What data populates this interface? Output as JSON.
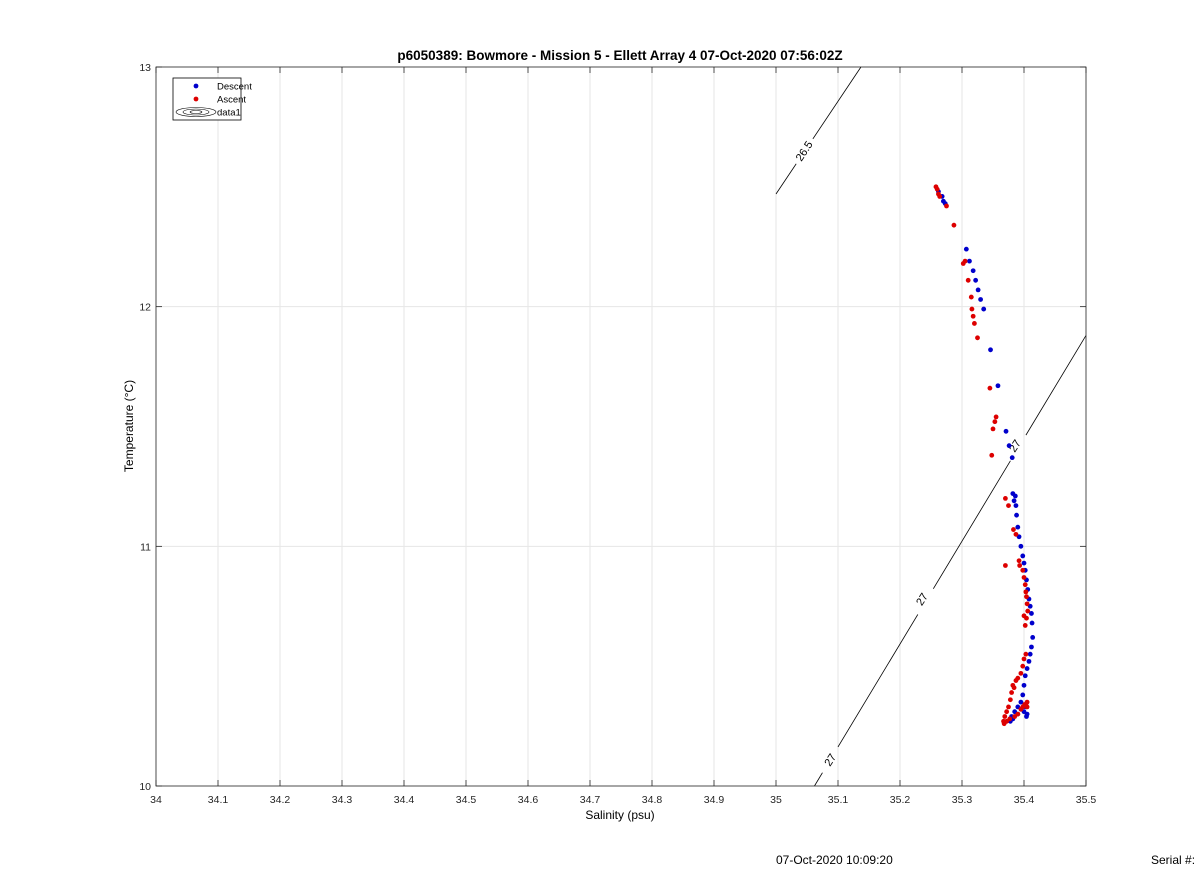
{
  "chart_data": {
    "type": "scatter",
    "title": "p6050389: Bowmore - Mission 5 - Ellett Array 4 07-Oct-2020 07:56:02Z",
    "xlabel": "Salinity (psu)",
    "ylabel": "Temperature (°C)",
    "xlim": [
      34,
      35.5
    ],
    "ylim": [
      10,
      13
    ],
    "xticks": [
      "34",
      "34.1",
      "34.2",
      "34.3",
      "34.4",
      "34.5",
      "34.6",
      "34.7",
      "34.8",
      "34.9",
      "35",
      "35.1",
      "35.2",
      "35.3",
      "35.4",
      "35.5"
    ],
    "yticks": [
      "10",
      "11",
      "12",
      "13"
    ],
    "grid": true,
    "legend": {
      "placement": "top-left",
      "entries": [
        "Descent",
        "Ascent",
        "data1"
      ]
    },
    "colors": {
      "descent": "#0000cc",
      "ascent": "#dd0000",
      "contour": "#000000",
      "grid": "#e6e6e6"
    },
    "contours": [
      {
        "label": "26.5",
        "points": [
          [
            35.0,
            12.47
          ],
          [
            35.137,
            13.0
          ]
        ]
      },
      {
        "label": "27",
        "points": [
          [
            35.062,
            10.0
          ],
          [
            35.5,
            11.88
          ]
        ]
      }
    ],
    "contour_labels": [
      {
        "text": "26.5",
        "x": 35.045,
        "y": 12.65
      },
      {
        "text": "27",
        "x": 35.087,
        "y": 10.11
      },
      {
        "text": "27",
        "x": 35.235,
        "y": 10.78
      },
      {
        "text": "27",
        "x": 35.385,
        "y": 11.42
      }
    ],
    "series": [
      {
        "name": "Descent",
        "x": [
          35.262,
          35.268,
          35.27,
          35.273,
          35.307,
          35.312,
          35.318,
          35.322,
          35.326,
          35.33,
          35.335,
          35.346,
          35.358,
          35.371,
          35.376,
          35.381,
          35.382,
          35.384,
          35.386,
          35.387,
          35.388,
          35.39,
          35.392,
          35.395,
          35.398,
          35.4,
          35.402,
          35.404,
          35.406,
          35.408,
          35.41,
          35.412,
          35.413,
          35.414,
          35.412,
          35.41,
          35.408,
          35.405,
          35.402,
          35.4,
          35.398,
          35.395,
          35.39,
          35.385,
          35.38,
          35.378,
          35.382,
          35.39,
          35.4,
          35.403,
          35.405,
          35.404
        ],
        "y": [
          12.48,
          12.46,
          12.44,
          12.43,
          12.24,
          12.19,
          12.15,
          12.11,
          12.07,
          12.03,
          11.99,
          11.82,
          11.67,
          11.48,
          11.42,
          11.37,
          11.22,
          11.19,
          11.21,
          11.17,
          11.13,
          11.08,
          11.04,
          11.0,
          10.96,
          10.93,
          10.9,
          10.86,
          10.82,
          10.78,
          10.75,
          10.72,
          10.68,
          10.62,
          10.58,
          10.55,
          10.52,
          10.49,
          10.46,
          10.42,
          10.38,
          10.35,
          10.33,
          10.31,
          10.29,
          10.27,
          10.28,
          10.3,
          10.31,
          10.33,
          10.3,
          10.29
        ]
      },
      {
        "name": "Ascent",
        "x": [
          35.258,
          35.26,
          35.262,
          35.264,
          35.275,
          35.287,
          35.302,
          35.305,
          35.31,
          35.315,
          35.316,
          35.318,
          35.32,
          35.325,
          35.345,
          35.35,
          35.353,
          35.355,
          35.348,
          35.37,
          35.375,
          35.383,
          35.387,
          35.392,
          35.393,
          35.398,
          35.4,
          35.402,
          35.403,
          35.404,
          35.405,
          35.406,
          35.404,
          35.402,
          35.403,
          35.4,
          35.398,
          35.395,
          35.39,
          35.387,
          35.384,
          35.382,
          35.38,
          35.378,
          35.375,
          35.372,
          35.369,
          35.367,
          35.368,
          35.372,
          35.377,
          35.385,
          35.39,
          35.395,
          35.398,
          35.401,
          35.403,
          35.405,
          35.405,
          35.37,
          35.4
        ],
        "y": [
          12.5,
          12.49,
          12.47,
          12.46,
          12.42,
          12.34,
          12.18,
          12.19,
          12.11,
          12.04,
          11.99,
          11.96,
          11.93,
          11.87,
          11.66,
          11.49,
          11.52,
          11.54,
          11.38,
          11.2,
          11.17,
          11.07,
          11.05,
          10.94,
          10.92,
          10.9,
          10.87,
          10.84,
          10.81,
          10.79,
          10.76,
          10.73,
          10.7,
          10.67,
          10.55,
          10.53,
          10.5,
          10.47,
          10.45,
          10.44,
          10.41,
          10.42,
          10.39,
          10.36,
          10.33,
          10.31,
          10.29,
          10.27,
          10.26,
          10.27,
          10.28,
          10.29,
          10.3,
          10.32,
          10.33,
          10.34,
          10.34,
          10.35,
          10.33,
          10.92,
          10.71
        ]
      }
    ]
  },
  "footer": {
    "timestamp": "07-Oct-2020 10:09:20",
    "serial_label": "Serial #:"
  }
}
